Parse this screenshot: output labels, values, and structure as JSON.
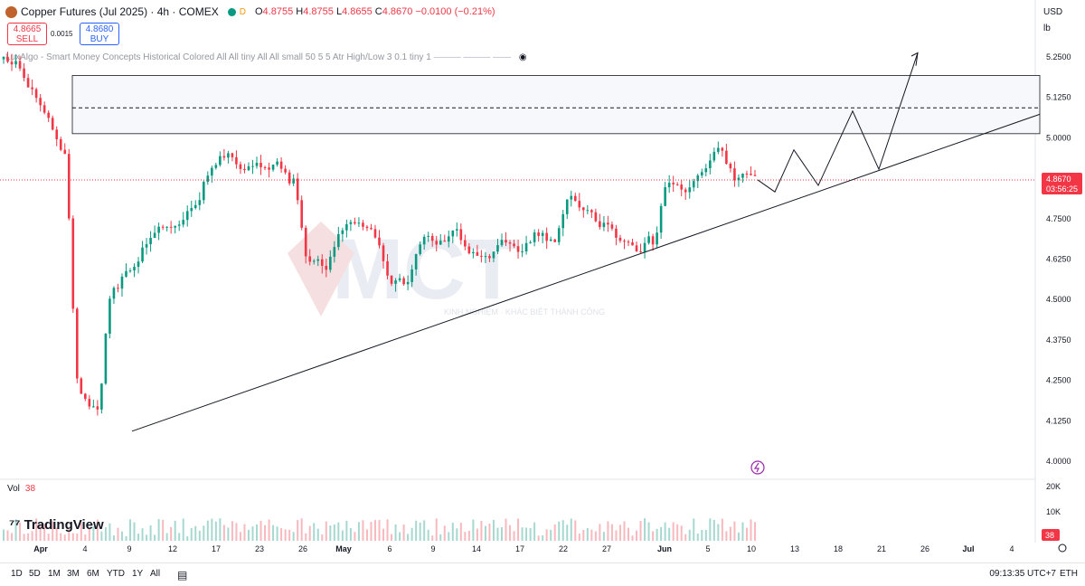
{
  "header": {
    "symbol": "Copper Futures (Jul 2025) · 4h · COMEX",
    "d_badge": "D",
    "ohlc": {
      "o_label": "O",
      "o": "4.8755",
      "h_label": "H",
      "h": "4.8755",
      "l_label": "L",
      "l": "4.8655",
      "c_label": "C",
      "c": "4.8670",
      "change": "−0.0100 (−0.21%)"
    },
    "sell_price": "4.8665",
    "sell_label": "SELL",
    "buy_price": "4.8680",
    "buy_label": "BUY",
    "spread": "0.0015",
    "indicator": "LuxAlgo - Smart Money Concepts Historical Colored All All tiny All All small 50 5 5 Atr High/Low 3 0.1 tiny 1"
  },
  "right": {
    "currency": "USD",
    "unit": "lb",
    "last_price": "4.8670",
    "countdown": "03:56:25",
    "vol_badge": "38"
  },
  "volume": {
    "label": "Vol",
    "value": "38",
    "scale": [
      "20K",
      "10K"
    ]
  },
  "brand": "TradingView",
  "watermark": {
    "main": "MCT",
    "sub": "KINH NGHIỆM · KHÁC BIỆT THÀNH CÔNG"
  },
  "bottom": {
    "timeframes": [
      "1D",
      "5D",
      "1M",
      "3M",
      "6M",
      "YTD",
      "1Y",
      "All"
    ],
    "clock": "09:13:35 UTC+7",
    "session": "ETH"
  },
  "colors": {
    "up": "#089981",
    "down": "#f23645",
    "grid": "#f0f3fa",
    "axis_text": "#131722"
  },
  "chart_data": {
    "type": "candlestick",
    "y_ticks": [
      "5.2500",
      "5.1250",
      "5.0000",
      "4.8750",
      "4.7500",
      "4.6250",
      "4.5000",
      "4.3750",
      "4.2500",
      "4.1250",
      "4.0000"
    ],
    "ylim": [
      4.0,
      5.25
    ],
    "x_ticks": [
      "Apr",
      "4",
      "9",
      "12",
      "17",
      "23",
      "26",
      "May",
      "6",
      "9",
      "14",
      "17",
      "22",
      "27",
      "Jun",
      "5",
      "10",
      "13",
      "18",
      "21",
      "26",
      "Jul",
      "4"
    ],
    "series": [
      {
        "t": "Apr 1",
        "c": 5.22
      },
      {
        "t": "Apr 2",
        "c": 5.15
      },
      {
        "t": "Apr 3",
        "c": 5.05
      },
      {
        "t": "Apr 4",
        "c": 4.96
      },
      {
        "t": "Apr 7",
        "c": 4.2
      },
      {
        "t": "Apr 9",
        "c": 4.15
      },
      {
        "t": "Apr 10",
        "c": 4.52
      },
      {
        "t": "Apr 11",
        "c": 4.58
      },
      {
        "t": "Apr 14",
        "c": 4.66
      },
      {
        "t": "Apr 15",
        "c": 4.72
      },
      {
        "t": "Apr 17",
        "c": 4.72
      },
      {
        "t": "Apr 18",
        "c": 4.8
      },
      {
        "t": "Apr 22",
        "c": 4.9
      },
      {
        "t": "Apr 23",
        "c": 4.95
      },
      {
        "t": "Apr 24",
        "c": 4.9
      },
      {
        "t": "Apr 25",
        "c": 4.92
      },
      {
        "t": "Apr 28",
        "c": 4.92
      },
      {
        "t": "Apr 29",
        "c": 4.86
      },
      {
        "t": "Apr 30",
        "c": 4.62
      },
      {
        "t": "May 1",
        "c": 4.6
      },
      {
        "t": "May 5",
        "c": 4.7
      },
      {
        "t": "May 6",
        "c": 4.73
      },
      {
        "t": "May 7",
        "c": 4.7
      },
      {
        "t": "May 8",
        "c": 4.56
      },
      {
        "t": "May 9",
        "c": 4.55
      },
      {
        "t": "May 12",
        "c": 4.68
      },
      {
        "t": "May 13",
        "c": 4.67
      },
      {
        "t": "May 14",
        "c": 4.7
      },
      {
        "t": "May 15",
        "c": 4.63
      },
      {
        "t": "May 16",
        "c": 4.62
      },
      {
        "t": "May 19",
        "c": 4.67
      },
      {
        "t": "May 20",
        "c": 4.65
      },
      {
        "t": "May 21",
        "c": 4.7
      },
      {
        "t": "May 22",
        "c": 4.68
      },
      {
        "t": "May 23",
        "c": 4.82
      },
      {
        "t": "May 26",
        "c": 4.78
      },
      {
        "t": "May 27",
        "c": 4.72
      },
      {
        "t": "May 28",
        "c": 4.68
      },
      {
        "t": "May 29",
        "c": 4.66
      },
      {
        "t": "May 30",
        "c": 4.68
      },
      {
        "t": "Jun 2",
        "c": 4.86
      },
      {
        "t": "Jun 3",
        "c": 4.84
      },
      {
        "t": "Jun 4",
        "c": 4.89
      },
      {
        "t": "Jun 5",
        "c": 4.96
      },
      {
        "t": "Jun 6",
        "c": 4.88
      },
      {
        "t": "Jun 9",
        "c": 4.89
      },
      {
        "t": "Jun 10",
        "c": 4.867
      }
    ],
    "zones": [
      {
        "top": 5.19,
        "bottom": 5.01,
        "mid": 5.09
      }
    ],
    "trendline": [
      {
        "t": "Apr 9",
        "v": 4.09
      },
      {
        "t": "Jun 28",
        "v": 5.07
      }
    ],
    "projection": [
      4.867,
      4.83,
      4.96,
      4.85,
      5.08,
      4.9,
      5.26
    ]
  }
}
